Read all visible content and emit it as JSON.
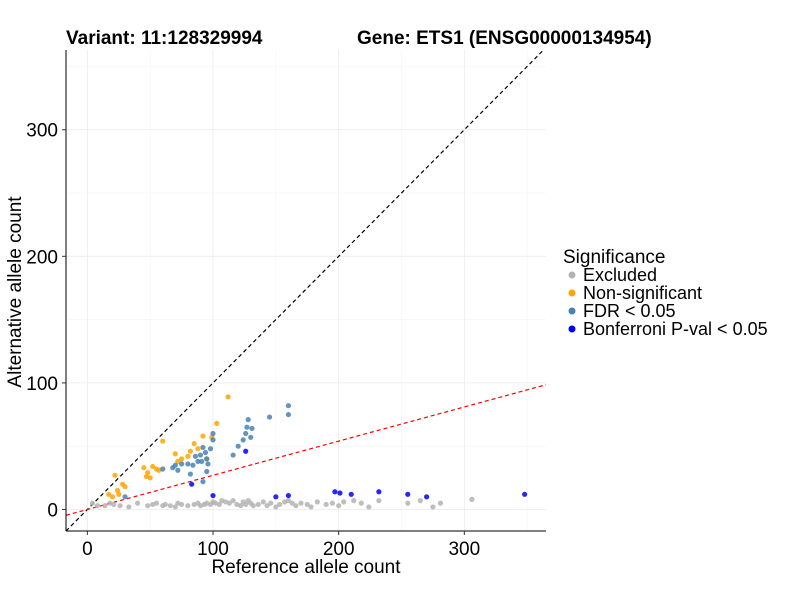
{
  "chart_data": {
    "type": "scatter",
    "title_left": "Variant: 11:128329994",
    "title_right": "Gene: ETS1 (ENSG00000134954)",
    "xlabel": "Reference allele count",
    "ylabel": "Alternative allele count",
    "xlim": [
      -17,
      365
    ],
    "ylim": [
      -17,
      363
    ],
    "xticks": [
      0,
      100,
      200,
      300
    ],
    "yticks": [
      0,
      100,
      200,
      300
    ],
    "xtick_labels": [
      "0",
      "100",
      "200",
      "300"
    ],
    "ytick_labels": [
      "0",
      "100",
      "200",
      "300"
    ],
    "grid": true,
    "legend": {
      "title": "Significance",
      "position": "right"
    },
    "reference_lines": [
      {
        "kind": "identity",
        "slope": 1,
        "intercept": 0,
        "color": "#000000",
        "dash": "dashed"
      },
      {
        "kind": "fit",
        "slope": 0.27,
        "intercept": 0,
        "color": "#ff0000",
        "dash": "dashed"
      }
    ],
    "series": [
      {
        "name": "Excluded",
        "color": "#b3b3b3",
        "points": [
          [
            4,
            5
          ],
          [
            8,
            3
          ],
          [
            14,
            3
          ],
          [
            18,
            5
          ],
          [
            21,
            4
          ],
          [
            26,
            3
          ],
          [
            33,
            2
          ],
          [
            40,
            5
          ],
          [
            48,
            3
          ],
          [
            52,
            4
          ],
          [
            55,
            5
          ],
          [
            60,
            3
          ],
          [
            62,
            4
          ],
          [
            66,
            3
          ],
          [
            70,
            2
          ],
          [
            72,
            5
          ],
          [
            75,
            4
          ],
          [
            80,
            3
          ],
          [
            85,
            4
          ],
          [
            88,
            5
          ],
          [
            90,
            3
          ],
          [
            93,
            4
          ],
          [
            95,
            5
          ],
          [
            98,
            4
          ],
          [
            100,
            6
          ],
          [
            102,
            5
          ],
          [
            105,
            4
          ],
          [
            107,
            7
          ],
          [
            110,
            6
          ],
          [
            113,
            5
          ],
          [
            116,
            7
          ],
          [
            119,
            4
          ],
          [
            122,
            3
          ],
          [
            124,
            6
          ],
          [
            126,
            4
          ],
          [
            128,
            7
          ],
          [
            130,
            5
          ],
          [
            132,
            3
          ],
          [
            136,
            4
          ],
          [
            140,
            6
          ],
          [
            143,
            3
          ],
          [
            146,
            5
          ],
          [
            150,
            2
          ],
          [
            153,
            4
          ],
          [
            157,
            6
          ],
          [
            160,
            7
          ],
          [
            163,
            5
          ],
          [
            166,
            3
          ],
          [
            170,
            5
          ],
          [
            175,
            4
          ],
          [
            178,
            2
          ],
          [
            183,
            6
          ],
          [
            190,
            4
          ],
          [
            195,
            5
          ],
          [
            200,
            3
          ],
          [
            204,
            6
          ],
          [
            212,
            7
          ],
          [
            218,
            5
          ],
          [
            224,
            2
          ],
          [
            232,
            7
          ],
          [
            255,
            5
          ],
          [
            265,
            7
          ],
          [
            275,
            2
          ],
          [
            281,
            5
          ],
          [
            306,
            8
          ]
        ]
      },
      {
        "name": "Non-significant",
        "color": "#ffa500",
        "points": [
          [
            17,
            12
          ],
          [
            20,
            10
          ],
          [
            22,
            27
          ],
          [
            24,
            15
          ],
          [
            25,
            12
          ],
          [
            28,
            20
          ],
          [
            30,
            18
          ],
          [
            45,
            33
          ],
          [
            47,
            26
          ],
          [
            48,
            29
          ],
          [
            50,
            25
          ],
          [
            52,
            34
          ],
          [
            55,
            32
          ],
          [
            57,
            31
          ],
          [
            60,
            54
          ],
          [
            70,
            44
          ],
          [
            72,
            38
          ],
          [
            75,
            40
          ],
          [
            80,
            42
          ],
          [
            82,
            46
          ],
          [
            85,
            52
          ],
          [
            88,
            48
          ],
          [
            92,
            58
          ],
          [
            95,
            40
          ],
          [
            99,
            57
          ],
          [
            103,
            68
          ],
          [
            112,
            89
          ]
        ]
      },
      {
        "name": "FDR < 0.05",
        "color": "#4682b4",
        "points": [
          [
            30,
            10
          ],
          [
            60,
            32
          ],
          [
            68,
            33
          ],
          [
            70,
            35
          ],
          [
            72,
            31
          ],
          [
            75,
            36
          ],
          [
            80,
            36
          ],
          [
            82,
            28
          ],
          [
            84,
            35
          ],
          [
            86,
            42
          ],
          [
            88,
            38
          ],
          [
            90,
            43
          ],
          [
            91,
            38
          ],
          [
            92,
            49
          ],
          [
            94,
            45
          ],
          [
            95,
            40
          ],
          [
            96,
            36
          ],
          [
            98,
            48
          ],
          [
            100,
            60
          ],
          [
            100,
            55
          ],
          [
            116,
            43
          ],
          [
            120,
            50
          ],
          [
            124,
            55
          ],
          [
            126,
            60
          ],
          [
            127,
            65
          ],
          [
            128,
            71
          ],
          [
            130,
            57
          ],
          [
            131,
            64
          ],
          [
            145,
            73
          ],
          [
            160,
            82
          ],
          [
            160,
            75
          ],
          [
            95,
            30
          ],
          [
            92,
            22
          ]
        ]
      },
      {
        "name": "Bonferroni P-val < 0.05",
        "color": "#0000ff",
        "points": [
          [
            83,
            20
          ],
          [
            100,
            11
          ],
          [
            126,
            46
          ],
          [
            150,
            10
          ],
          [
            160,
            11
          ],
          [
            197,
            14
          ],
          [
            201,
            13
          ],
          [
            210,
            12
          ],
          [
            232,
            14
          ],
          [
            255,
            12
          ],
          [
            270,
            10
          ],
          [
            348,
            12
          ]
        ]
      }
    ]
  }
}
